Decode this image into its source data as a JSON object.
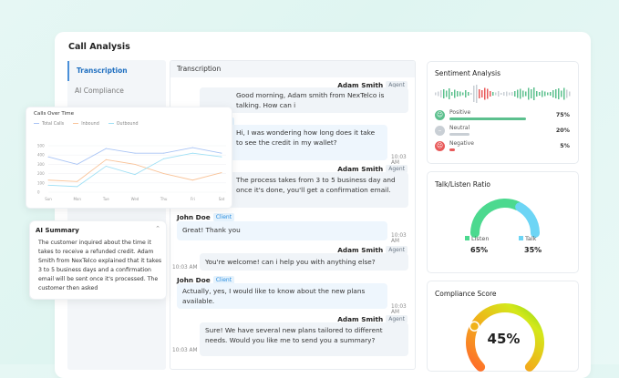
{
  "page": {
    "title": "Call Analysis"
  },
  "nav": {
    "items": [
      {
        "label": "Transcription",
        "active": true
      },
      {
        "label": "AI Compliance",
        "active": false
      }
    ]
  },
  "transcription": {
    "header": "Transcription",
    "messages": [
      {
        "speaker": "Adam Smith",
        "role": "Agent",
        "text": "Good morning, Adam smith from NexTelco is talking. How can i",
        "time": ""
      },
      {
        "speaker": "John Doe",
        "role": "Client",
        "text": "Hi, I was wondering how long does it take to see the credit in my wallet?",
        "time": "10:03 AM"
      },
      {
        "speaker": "Adam Smith",
        "role": "Agent",
        "text": "The process takes from 3 to 5 business day and once it's done, you'll get a confirmation email.",
        "time": ""
      },
      {
        "speaker": "John Doe",
        "role": "Client",
        "text": "Great! Thank you",
        "time": "10:03 AM"
      },
      {
        "speaker": "Adam Smith",
        "role": "Agent",
        "text": "You're welcome! can i help you with anything else?",
        "time": "10:03 AM"
      },
      {
        "speaker": "John Doe",
        "role": "Client",
        "text": "Actually, yes, I would like to know about the new plans available.",
        "time": "10:03 AM"
      },
      {
        "speaker": "Adam Smith",
        "role": "Agent",
        "text": "Sure! We have several new plans tailored to different needs. Would you like me to send you a summary?",
        "time": "10:03 AM"
      }
    ]
  },
  "sentiment": {
    "title": "Sentiment Analysis",
    "rows": [
      {
        "label": "Positive",
        "value": 75,
        "display": "75%",
        "color": "#5cc08e",
        "icon": "smile-face-icon"
      },
      {
        "label": "Neutral",
        "value": 20,
        "display": "20%",
        "color": "#c9cfd5",
        "icon": "neutral-face-icon"
      },
      {
        "label": "Negative",
        "value": 5,
        "display": "5%",
        "color": "#e85a5a",
        "icon": "sad-face-icon"
      }
    ]
  },
  "talk_listen": {
    "title": "Talk/Listen Ratio",
    "listen": {
      "label": "Listen",
      "value": 65,
      "display": "65%",
      "color": "#4cd98f"
    },
    "talk": {
      "label": "Talk",
      "value": 35,
      "display": "35%",
      "color": "#6dd5f5"
    }
  },
  "compliance": {
    "title": "Compliance Score",
    "value": 45,
    "display": "45%"
  },
  "ai_summary": {
    "title": "AI Summary",
    "text": "The customer inquired about the time it takes to receive a refunded credit. Adam Smith from NexTelco explained that it takes 3 to 5 business days and a confirmation email will be sent once it's processed. The customer then asked"
  },
  "chart_data": {
    "type": "line",
    "title": "Calls Over Time",
    "categories": [
      "Sun",
      "Mon",
      "Tue",
      "Wed",
      "Thu",
      "Fri",
      "Sat"
    ],
    "ylim": [
      0,
      500
    ],
    "yticks": [
      0,
      100,
      200,
      300,
      400,
      500
    ],
    "grid": true,
    "legend": "top-left",
    "series": [
      {
        "name": "Total Calls",
        "color": "#a9c4f5",
        "values": [
          380,
          300,
          470,
          420,
          420,
          480,
          420
        ]
      },
      {
        "name": "Inbound",
        "color": "#f9c49a",
        "values": [
          130,
          115,
          350,
          300,
          200,
          130,
          210
        ]
      },
      {
        "name": "Outbound",
        "color": "#9fe0f5",
        "values": [
          75,
          60,
          280,
          190,
          360,
          420,
          380
        ]
      }
    ]
  }
}
